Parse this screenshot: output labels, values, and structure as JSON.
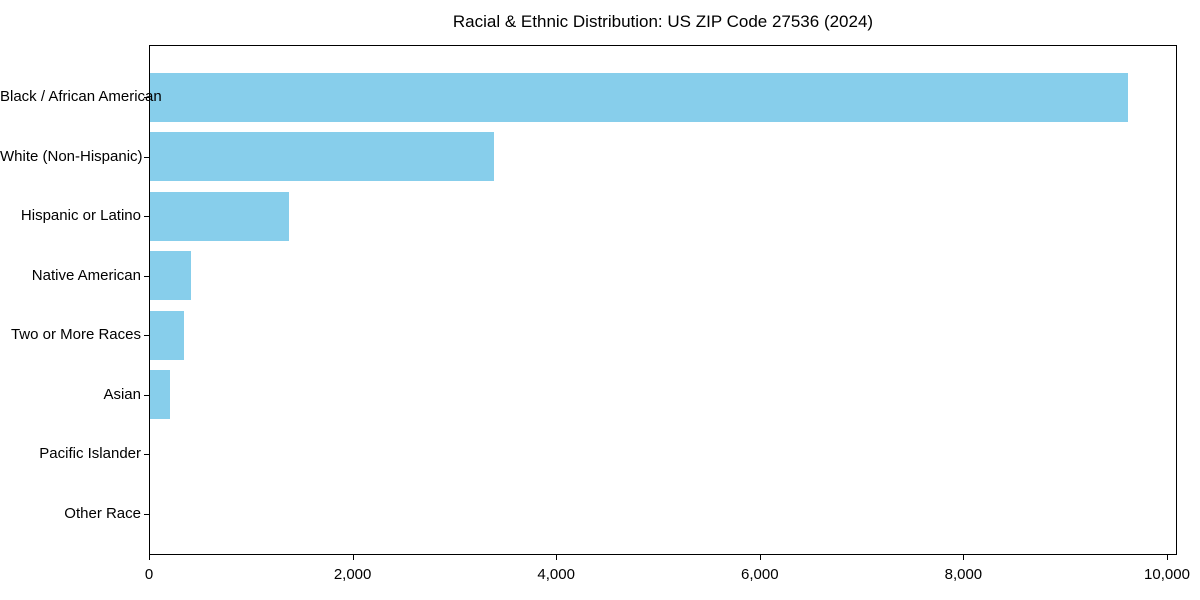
{
  "chart_data": {
    "type": "bar",
    "orientation": "horizontal",
    "title": "Racial & Ethnic Distribution: US ZIP Code 27536 (2024)",
    "categories": [
      "Black / African American",
      "White (Non-Hispanic)",
      "Hispanic or Latino",
      "Native American",
      "Two or More Races",
      "Asian",
      "Pacific Islander",
      "Other Race"
    ],
    "values": [
      9610,
      3380,
      1370,
      400,
      335,
      200,
      0,
      0
    ],
    "xlabel": "",
    "ylabel": "",
    "xlim": [
      0,
      10100
    ],
    "x_ticks": [
      0,
      2000,
      4000,
      6000,
      8000,
      10000
    ],
    "x_tick_labels": [
      "0",
      "2,000",
      "4,000",
      "6,000",
      "8,000",
      "10,000"
    ],
    "bar_color": "#87CEEB",
    "axis_color": "#000000",
    "text_color": "#000000",
    "background": "#FFFFFF",
    "grid": false,
    "legend": null
  }
}
